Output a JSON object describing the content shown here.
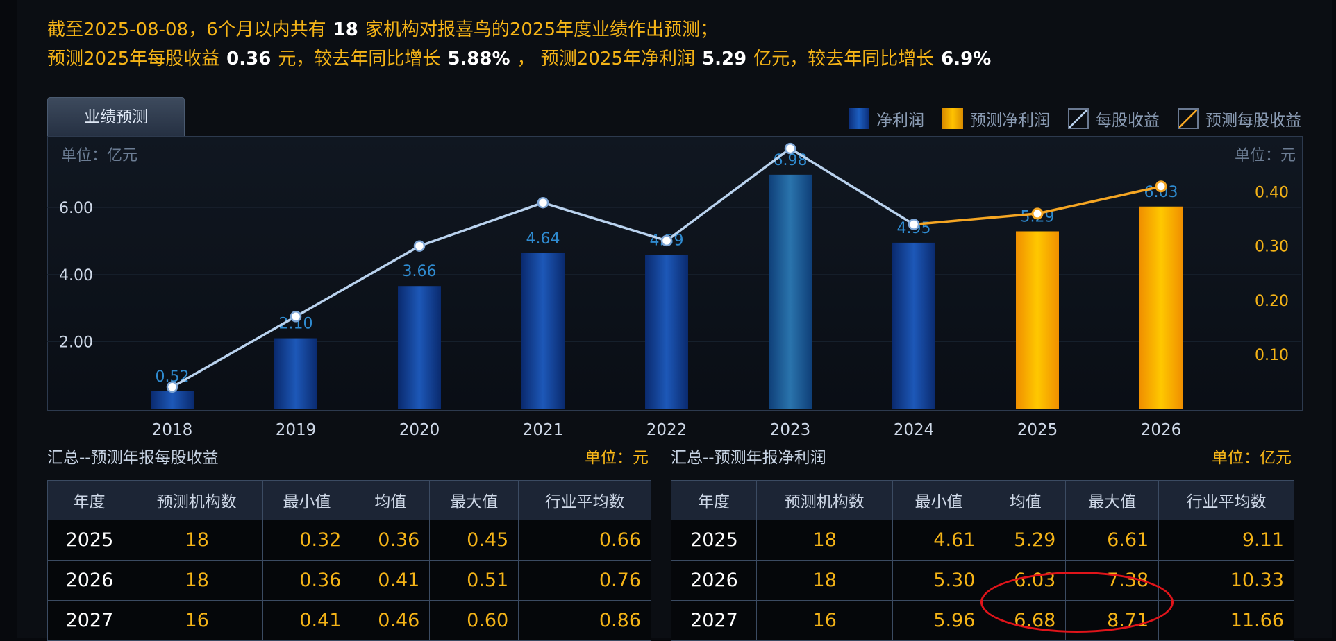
{
  "header": {
    "line1_a": "截至2025-08-08，6个月以内共有",
    "line1_count": "18",
    "line1_b": "家机构对报喜鸟的2025年度业绩作出预测；",
    "line2_a": "预测2025年每股收益",
    "line2_eps": "0.36",
    "line2_b": "元，较去年同比增长",
    "line2_eps_growth": "5.88%",
    "line2_c": "， 预测2025年净利润",
    "line2_profit": "5.29",
    "line2_d": "亿元，较去年同比增长",
    "line2_profit_growth": "6.9%"
  },
  "tab": {
    "label": "业绩预测"
  },
  "legend": [
    {
      "label": "净利润",
      "icon": "blue-bar-swatch"
    },
    {
      "label": "预测净利润",
      "icon": "gold-bar-swatch"
    },
    {
      "label": "每股收益",
      "icon": "line-swatch"
    },
    {
      "label": "预测每股收益",
      "icon": "orange-line-swatch"
    }
  ],
  "units": {
    "left": "单位：亿元",
    "right": "单位：元"
  },
  "chart_data": {
    "type": "bar",
    "categories": [
      "2018",
      "2019",
      "2020",
      "2021",
      "2022",
      "2023",
      "2024",
      "2025",
      "2026"
    ],
    "series": [
      {
        "name": "净利润",
        "values": [
          0.52,
          2.1,
          3.66,
          4.64,
          4.59,
          6.98,
          4.95,
          null,
          null
        ],
        "color": "#1a4fae"
      },
      {
        "name": "预测净利润",
        "values": [
          null,
          null,
          null,
          null,
          null,
          null,
          null,
          5.29,
          6.03
        ],
        "color": "#ffb400"
      },
      {
        "name": "每股收益",
        "values": [
          0.04,
          0.17,
          0.3,
          0.38,
          0.31,
          0.48,
          0.34,
          null,
          null
        ],
        "color": "#b9d2ee"
      },
      {
        "name": "预测每股收益",
        "values": [
          null,
          null,
          null,
          null,
          null,
          null,
          0.34,
          0.36,
          0.41
        ],
        "color": "#f5a623"
      }
    ],
    "bar_labels": [
      "0.52",
      "2.10",
      "3.66",
      "4.64",
      "4.59",
      "6.98",
      "4.95",
      "5.29",
      "6.03"
    ],
    "y_left_ticks": [
      "2.00",
      "4.00",
      "6.00"
    ],
    "y_right_ticks": [
      "0.10",
      "0.20",
      "0.30",
      "0.40"
    ],
    "ylim_left": [
      0,
      8
    ],
    "ylim_right": [
      0,
      0.5
    ],
    "grid": true
  },
  "eps_section": {
    "title": "汇总--预测年报每股收益",
    "unit": "单位：元",
    "headers": [
      "年度",
      "预测机构数",
      "最小值",
      "均值",
      "最大值",
      "行业平均数"
    ],
    "rows": [
      [
        "2025",
        "18",
        "0.32",
        "0.36",
        "0.45",
        "0.66"
      ],
      [
        "2026",
        "18",
        "0.36",
        "0.41",
        "0.51",
        "0.76"
      ],
      [
        "2027",
        "16",
        "0.41",
        "0.46",
        "0.60",
        "0.86"
      ]
    ]
  },
  "profit_section": {
    "title": "汇总--预测年报净利润",
    "unit": "单位：亿元",
    "headers": [
      "年度",
      "预测机构数",
      "最小值",
      "均值",
      "最大值",
      "行业平均数"
    ],
    "rows": [
      [
        "2025",
        "18",
        "4.61",
        "5.29",
        "6.61",
        "9.11"
      ],
      [
        "2026",
        "18",
        "5.30",
        "6.03",
        "7.38",
        "10.33"
      ],
      [
        "2027",
        "16",
        "5.96",
        "6.68",
        "8.71",
        "11.66"
      ]
    ]
  }
}
